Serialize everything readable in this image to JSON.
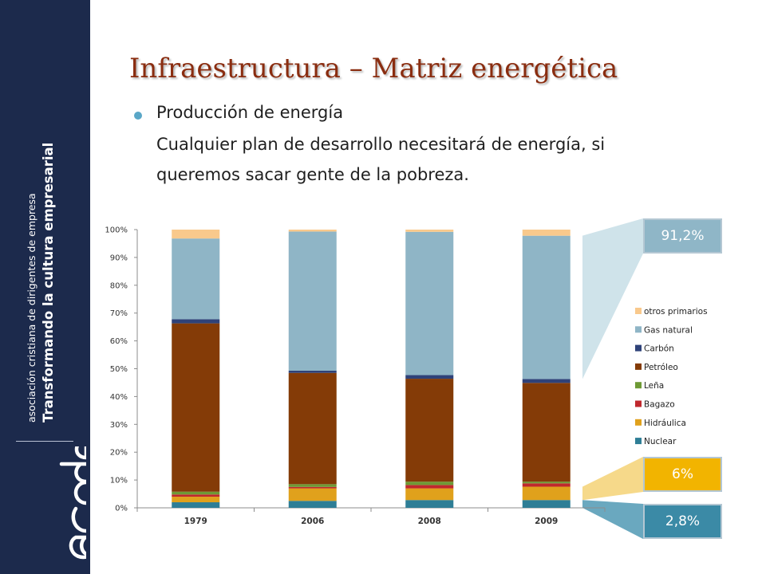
{
  "slide": {
    "title": "Infraestructura – Matriz energética",
    "bullet_heading": "Producción de energía",
    "body_lines": [
      "Cualquier plan de desarrollo necesitará de energía, si",
      "queremos sacar gente de la pobreza."
    ]
  },
  "sidebar": {
    "tagline_line1": "asociación cristiana de dirigentes de empresa",
    "tagline_line2": "Transformando la cultura empresarial",
    "logo_text": "acde",
    "background_color": "#1c2a4c"
  },
  "callouts": {
    "gas": {
      "label": "91,2%",
      "color": "#8fb6c7"
    },
    "hidraulica": {
      "label": "6%",
      "color": "#f2b400"
    },
    "nuclear": {
      "label": "2,8%",
      "color": "#3b8aa6"
    }
  },
  "chart_data": {
    "type": "bar",
    "stacked": true,
    "percent": true,
    "categories": [
      "1979",
      "2006",
      "2008",
      "2009"
    ],
    "ylim": [
      0,
      100
    ],
    "yticks": [
      "0%",
      "10%",
      "20%",
      "30%",
      "40%",
      "50%",
      "60%",
      "70%",
      "80%",
      "90%",
      "100%"
    ],
    "grid": false,
    "legend_position": "right",
    "series": [
      {
        "name": "Nuclear",
        "color": "#2e7e96",
        "values": [
          2.0,
          2.5,
          2.8,
          2.8
        ]
      },
      {
        "name": "Hidráulica",
        "color": "#e0a11c",
        "values": [
          2.0,
          4.5,
          4.2,
          4.8
        ]
      },
      {
        "name": "Bagazo",
        "color": "#c0282d",
        "values": [
          0.8,
          0.5,
          1.2,
          1.2
        ]
      },
      {
        "name": "Leña",
        "color": "#6e9a35",
        "values": [
          1.0,
          1.0,
          1.2,
          0.6
        ]
      },
      {
        "name": "Petróleo",
        "color": "#843b07",
        "values": [
          60.5,
          40.0,
          37.0,
          35.5
        ]
      },
      {
        "name": "Carbón",
        "color": "#2f4279",
        "values": [
          1.5,
          0.8,
          1.3,
          1.4
        ]
      },
      {
        "name": "Gas natural",
        "color": "#8fb5c6",
        "values": [
          29.0,
          50.0,
          51.5,
          51.5
        ]
      },
      {
        "name": "otros primarios",
        "color": "#f9c98c",
        "values": [
          3.2,
          0.7,
          0.8,
          2.2
        ]
      }
    ],
    "legend_order": [
      "otros primarios",
      "Gas natural",
      "Carbón",
      "Petróleo",
      "Leña",
      "Bagazo",
      "Hidráulica",
      "Nuclear"
    ]
  }
}
